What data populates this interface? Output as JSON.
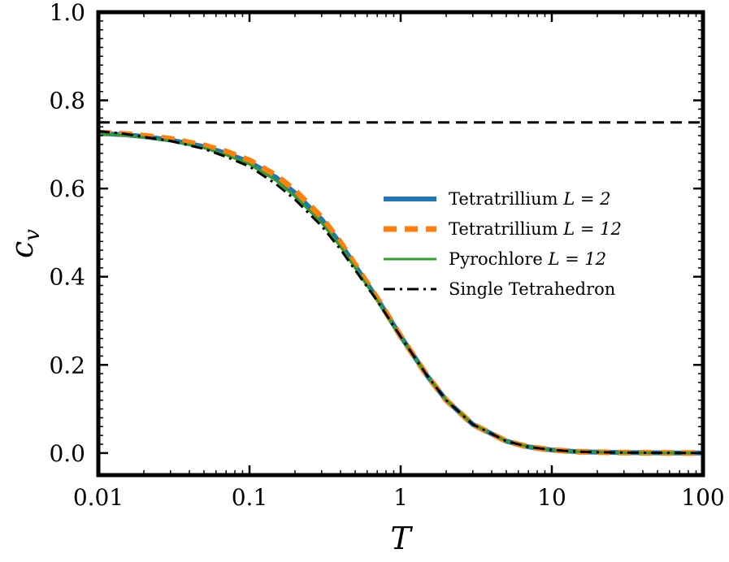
{
  "chart_data": {
    "type": "line",
    "title": "",
    "xlabel": "T",
    "ylabel": "c_v",
    "xscale": "log",
    "xlim": [
      0.01,
      100
    ],
    "ylim": [
      -0.05,
      1.0
    ],
    "x_ticks": [
      {
        "value": 0.01,
        "label": "0.01"
      },
      {
        "value": 0.1,
        "label": "0.1"
      },
      {
        "value": 1,
        "label": "1"
      },
      {
        "value": 10,
        "label": "10"
      },
      {
        "value": 100,
        "label": "100"
      }
    ],
    "y_ticks": [
      {
        "value": 0.0,
        "label": "0.0"
      },
      {
        "value": 0.2,
        "label": "0.2"
      },
      {
        "value": 0.4,
        "label": "0.4"
      },
      {
        "value": 0.6,
        "label": "0.6"
      },
      {
        "value": 0.8,
        "label": "0.8"
      },
      {
        "value": 1.0,
        "label": "1.0"
      }
    ],
    "reference_line": {
      "y": 0.75,
      "style": "dashed",
      "color": "#000000"
    },
    "x": [
      0.01,
      0.015,
      0.02,
      0.03,
      0.05,
      0.07,
      0.1,
      0.15,
      0.2,
      0.3,
      0.4,
      0.5,
      0.7,
      1.0,
      1.5,
      2.0,
      3.0,
      5.0,
      7.0,
      10,
      15,
      20,
      30,
      50,
      70,
      100
    ],
    "series": [
      {
        "name": "Tetratrillium L = 2",
        "legend_prefix": "Tetratrillium",
        "legend_math": "L = 2",
        "color": "#1f77b4",
        "style": "solid",
        "width": 6,
        "values": [
          0.725,
          0.722,
          0.718,
          0.71,
          0.695,
          0.68,
          0.66,
          0.625,
          0.59,
          0.53,
          0.475,
          0.425,
          0.35,
          0.265,
          0.175,
          0.12,
          0.065,
          0.027,
          0.014,
          0.007,
          0.003,
          0.002,
          0.001,
          0.0005,
          0.0003,
          0.0001
        ]
      },
      {
        "name": "Tetratrillium L = 12",
        "legend_prefix": "Tetratrillium",
        "legend_math": "L = 12",
        "color": "#ff7f0e",
        "style": "dashed",
        "width": 7,
        "values": [
          0.727,
          0.724,
          0.72,
          0.713,
          0.698,
          0.684,
          0.664,
          0.63,
          0.596,
          0.535,
          0.478,
          0.427,
          0.351,
          0.265,
          0.175,
          0.12,
          0.065,
          0.027,
          0.014,
          0.007,
          0.003,
          0.002,
          0.001,
          0.0005,
          0.0003,
          0.0001
        ]
      },
      {
        "name": "Pyrochlore L = 12",
        "legend_prefix": "Pyrochlore",
        "legend_math": "L = 12",
        "color": "#2ca02c",
        "style": "solid",
        "width": 3,
        "values": [
          0.724,
          0.721,
          0.716,
          0.708,
          0.692,
          0.676,
          0.655,
          0.618,
          0.582,
          0.522,
          0.468,
          0.42,
          0.347,
          0.264,
          0.175,
          0.12,
          0.065,
          0.027,
          0.014,
          0.007,
          0.003,
          0.002,
          0.001,
          0.0005,
          0.0003,
          0.0001
        ]
      },
      {
        "name": "Single Tetrahedron",
        "legend_prefix": "Single Tetrahedron",
        "legend_math": "",
        "color": "#000000",
        "style": "dashdot",
        "width": 3,
        "values": [
          0.73,
          0.724,
          0.717,
          0.708,
          0.69,
          0.672,
          0.65,
          0.61,
          0.575,
          0.515,
          0.462,
          0.415,
          0.345,
          0.264,
          0.175,
          0.12,
          0.065,
          0.027,
          0.014,
          0.007,
          0.003,
          0.002,
          0.001,
          0.0005,
          0.0003,
          0.0001
        ]
      }
    ],
    "legend_position": "center-right",
    "grid": false
  }
}
